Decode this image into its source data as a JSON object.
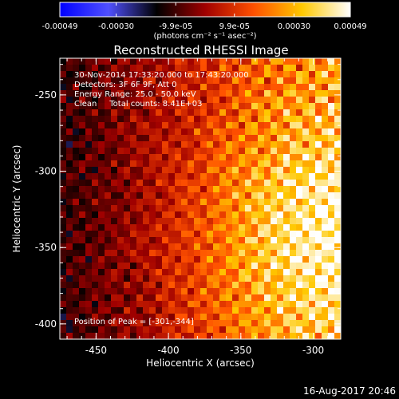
{
  "chart_data": {
    "type": "heatmap",
    "title": "Reconstructed RHESSI Image",
    "colorbar": {
      "tick_labels": [
        "-0.00049",
        "-0.00030",
        "-9.9e-05",
        "9.9e-05",
        "0.00030",
        "0.00049"
      ],
      "unit_label": "(photons cm⁻² s⁻¹ asec⁻²)",
      "range": [
        -0.00049,
        0.00049
      ],
      "colormap": [
        "#0000ff",
        "#5050ff",
        "#000000",
        "#a00000",
        "#ff5000",
        "#ffc800",
        "#ffffff"
      ]
    },
    "xlabel": "Heliocentric X (arcsec)",
    "ylabel": "Heliocentric Y (arcsec)",
    "xlim": [
      -475,
      -281
    ],
    "ylim": [
      -410,
      -226
    ],
    "xticks": [
      -450,
      -400,
      -350,
      -300
    ],
    "yticks": [
      -400,
      -350,
      -300,
      -250
    ],
    "xtick_labels": [
      "-450",
      "-400",
      "-350",
      "-300"
    ],
    "ytick_labels": [
      "-400",
      "-350",
      "-300",
      "-250"
    ],
    "annotations": [
      "30-Nov-2014 17:33:20.000 to 17:43:20.000",
      "Detectors: 3F 6F 9F, Att 0",
      "Energy Range: 25.0 - 50.0 keV",
      "Clean     Total counts: 8.41E+03"
    ],
    "peak_label": "Position of Peak = [-301,-344]",
    "peak": [
      -301,
      -344
    ]
  },
  "footer_date": "16-Aug-2017 20:46"
}
